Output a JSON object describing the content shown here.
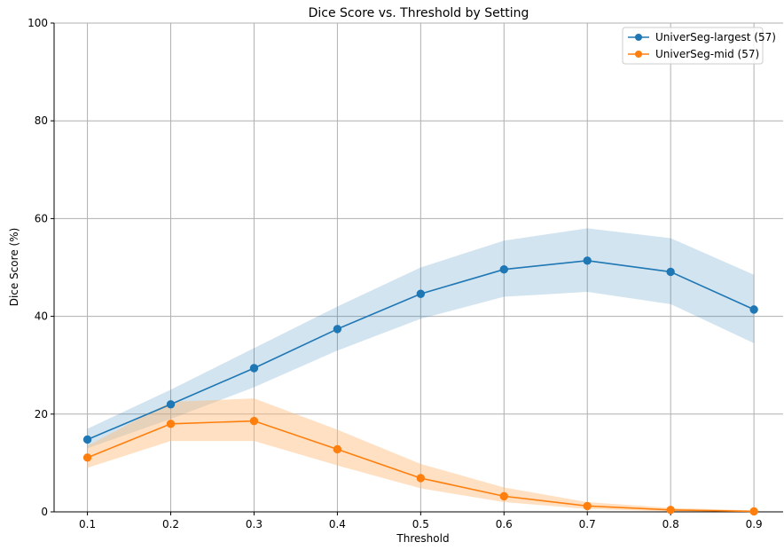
{
  "chart_data": {
    "type": "line",
    "title": "Dice Score vs. Threshold by Setting",
    "xlabel": "Threshold",
    "ylabel": "Dice Score (%)",
    "x": [
      0.1,
      0.2,
      0.3,
      0.4,
      0.5,
      0.6,
      0.7,
      0.8,
      0.9
    ],
    "x_tick_labels": [
      "0.1",
      "0.2",
      "0.3",
      "0.4",
      "0.5",
      "0.6",
      "0.7",
      "0.8",
      "0.9"
    ],
    "ylim": [
      0,
      100
    ],
    "y_ticks": [
      0,
      20,
      40,
      60,
      80,
      100
    ],
    "y_tick_labels": [
      "0",
      "20",
      "40",
      "60",
      "80",
      "100"
    ],
    "grid": true,
    "legend_position": "top-right",
    "series": [
      {
        "name": "UniverSeg-largest (57)",
        "color": "#1f77b4",
        "band_color": "#1f77b4",
        "values": [
          14.8,
          22.0,
          29.4,
          37.4,
          44.6,
          49.6,
          51.4,
          49.1,
          41.4
        ],
        "lower": [
          13.0,
          19.0,
          25.5,
          33.0,
          39.5,
          44.0,
          45.0,
          42.5,
          34.5
        ],
        "upper": [
          17.0,
          25.0,
          33.5,
          42.0,
          50.0,
          55.5,
          58.0,
          56.0,
          48.5
        ]
      },
      {
        "name": "UniverSeg-mid (57)",
        "color": "#ff7f0e",
        "band_color": "#ffbb78",
        "values": [
          11.1,
          18.0,
          18.6,
          12.8,
          6.9,
          3.2,
          1.2,
          0.4,
          0.1
        ],
        "lower": [
          9.0,
          14.5,
          14.5,
          9.5,
          4.8,
          2.0,
          0.6,
          0.1,
          0.0
        ],
        "upper": [
          13.5,
          22.5,
          23.2,
          16.8,
          9.8,
          5.0,
          2.0,
          0.8,
          0.3
        ]
      }
    ]
  }
}
